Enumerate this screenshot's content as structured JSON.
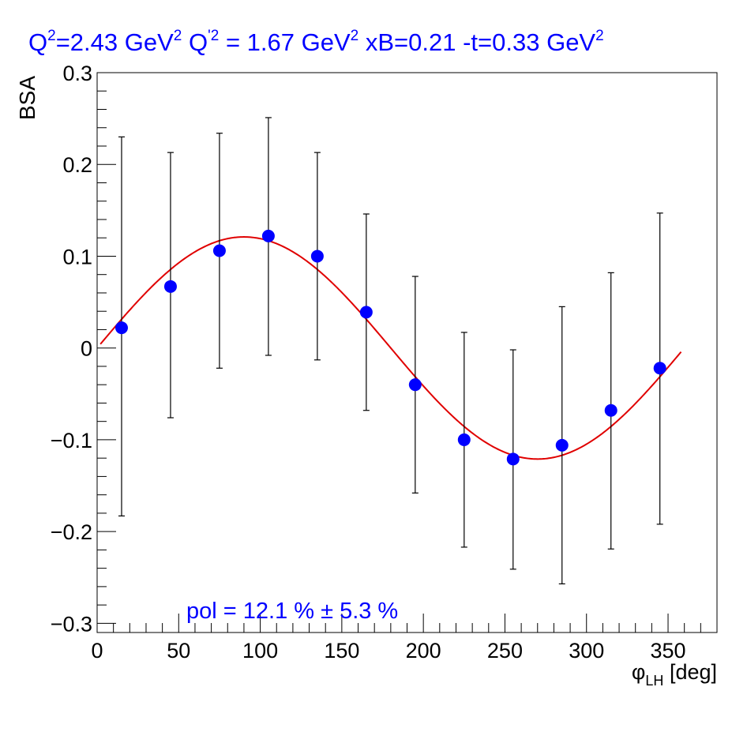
{
  "title": {
    "q2_base": "Q",
    "q2_sup": "2",
    "q2_value": "=2.43 GeV",
    "q2_unit_sup": "2",
    "qp2_base": "Q",
    "qp2_sup": "'2",
    "qp2_value": " = 1.67 GeV",
    "qp2_unit_sup": "2",
    "xb": "xB=0.21",
    "t_value": "-t=0.33 GeV",
    "t_unit_sup": "2"
  },
  "ylabel": "BSA",
  "xlabel": {
    "symbol": "φ",
    "subscript": "LH",
    "unit": "[deg]"
  },
  "annotation": {
    "text": "pol = 12.1 % ± 5.3 %"
  },
  "colors": {
    "title": "#0000ff",
    "markers": "#0000ff",
    "fit": "#e00000",
    "errorbars": "#000000",
    "axes": "#000000",
    "annotation": "#0000ff"
  },
  "chart_data": {
    "type": "scatter",
    "xlim": [
      0,
      380
    ],
    "ylim": [
      -0.31,
      0.3
    ],
    "xticks": [
      0,
      50,
      100,
      150,
      200,
      250,
      300,
      350
    ],
    "xtick_labels": [
      "0",
      "50",
      "100",
      "150",
      "200",
      "250",
      "300",
      "350"
    ],
    "yticks": [
      -0.3,
      -0.2,
      -0.1,
      0,
      0.1,
      0.2,
      0.3
    ],
    "ytick_labels": [
      "−0.3",
      "−0.2",
      "−0.1",
      "0",
      "0.1",
      "0.2",
      "0.3"
    ],
    "grid": false,
    "series": [
      {
        "x": [
          15,
          45,
          75,
          105,
          135,
          165,
          195,
          225,
          255,
          285,
          315,
          345
        ],
        "y": [
          0.022,
          0.067,
          0.106,
          0.122,
          0.1,
          0.039,
          -0.04,
          -0.1,
          -0.121,
          -0.106,
          -0.068,
          -0.022
        ],
        "err_low": [
          0.205,
          0.143,
          0.128,
          0.13,
          0.113,
          0.107,
          0.118,
          0.117,
          0.12,
          0.151,
          0.151,
          0.17
        ],
        "err_high": [
          0.208,
          0.146,
          0.128,
          0.129,
          0.113,
          0.107,
          0.118,
          0.117,
          0.119,
          0.151,
          0.15,
          0.169
        ]
      }
    ],
    "fit": {
      "function": "A*sin(phi)",
      "amplitude": 0.121,
      "x_range": [
        2,
        358
      ]
    }
  }
}
